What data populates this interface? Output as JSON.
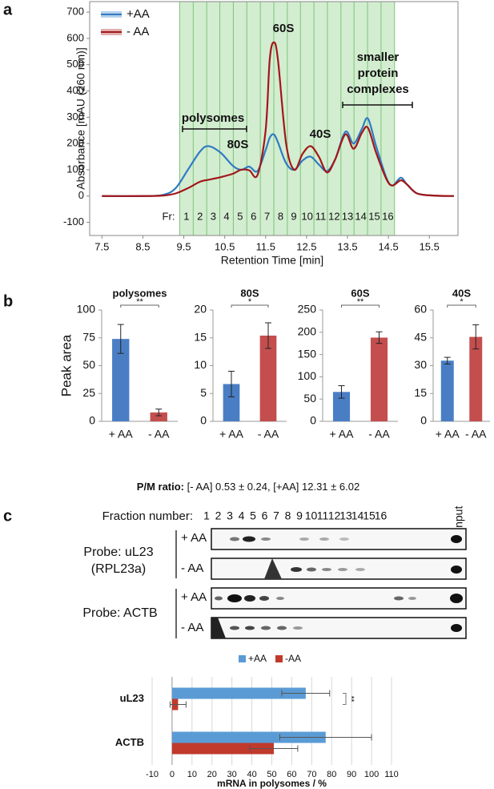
{
  "panel_labels": [
    "a",
    "b",
    "c"
  ],
  "chart_data": [
    {
      "type": "line",
      "xlabel": "Retention Time [min]",
      "ylabel": "Absorbance [mAU (260 nm)]",
      "xlim": [
        7.2,
        16.2
      ],
      "ylim": [
        -150,
        740
      ],
      "xticks": [
        7.5,
        8.5,
        9.5,
        10.5,
        11.5,
        12.5,
        13.5,
        14.5,
        15.5
      ],
      "yticks": [
        -100,
        0,
        100,
        200,
        300,
        400,
        500,
        600,
        700
      ],
      "legend": "upper left",
      "x": [
        7.5,
        8.5,
        9.0,
        9.3,
        9.6,
        9.9,
        10.1,
        10.4,
        10.7,
        10.9,
        11.1,
        11.3,
        11.5,
        11.6,
        11.7,
        11.8,
        12.0,
        12.2,
        12.4,
        12.6,
        12.8,
        13.0,
        13.2,
        13.45,
        13.65,
        13.85,
        14.0,
        14.2,
        14.45,
        14.6,
        14.8,
        14.95,
        15.2,
        15.6,
        16.1
      ],
      "series": [
        {
          "name": "+AA",
          "color": "#2e7bc4",
          "values": [
            0,
            0,
            5,
            30,
            100,
            170,
            190,
            165,
            115,
            100,
            112,
            95,
            175,
            222,
            235,
            205,
            125,
            100,
            135,
            150,
            120,
            95,
            140,
            245,
            200,
            255,
            295,
            190,
            70,
            40,
            70,
            45,
            10,
            2,
            0
          ]
        },
        {
          "name": "- AA",
          "color": "#a3161a",
          "values": [
            0,
            0,
            2,
            10,
            30,
            55,
            62,
            72,
            85,
            100,
            98,
            80,
            250,
            520,
            585,
            520,
            200,
            100,
            160,
            190,
            150,
            90,
            140,
            235,
            180,
            240,
            260,
            165,
            65,
            40,
            60,
            45,
            10,
            2,
            0
          ]
        }
      ],
      "annotations": [
        "polysomes",
        "80S",
        "60S",
        "40S",
        "smaller",
        "protein",
        "complexes"
      ],
      "fraction_label": "Fr:",
      "fractions": [
        "1",
        "2",
        "3",
        "4",
        "5",
        "6",
        "7",
        "8",
        "9",
        "10",
        "11",
        "12",
        "13",
        "14",
        "15",
        "16"
      ],
      "fraction_edges": [
        9.4,
        9.73,
        10.06,
        10.38,
        10.71,
        11.04,
        11.37,
        11.7,
        12.03,
        12.35,
        12.68,
        13.01,
        13.34,
        13.66,
        13.99,
        14.32,
        14.65
      ],
      "fraction_color": "#d3edd0"
    },
    {
      "type": "bar",
      "title": "polysomes",
      "ylabel": "Peak area",
      "categories": [
        "+ AA",
        "- AA"
      ],
      "values": [
        74,
        8
      ],
      "errors": [
        13,
        3
      ],
      "colors": [
        "#4a7ec4",
        "#c44e4e"
      ],
      "ylim": [
        0,
        100
      ],
      "yticks": [
        0,
        25,
        50,
        75,
        100
      ],
      "significance": "**"
    },
    {
      "type": "bar",
      "title": "80S",
      "categories": [
        "+ AA",
        "- AA"
      ],
      "values": [
        6.7,
        15.4
      ],
      "errors": [
        2.3,
        2.3
      ],
      "colors": [
        "#4a7ec4",
        "#c44e4e"
      ],
      "ylim": [
        0,
        20
      ],
      "yticks": [
        0,
        5,
        10,
        15,
        20
      ],
      "significance": "*"
    },
    {
      "type": "bar",
      "title": "60S",
      "categories": [
        "+ AA",
        "- AA"
      ],
      "values": [
        66,
        188
      ],
      "errors": [
        14,
        13
      ],
      "colors": [
        "#4a7ec4",
        "#c44e4e"
      ],
      "ylim": [
        0,
        250
      ],
      "yticks": [
        0,
        50,
        100,
        150,
        200,
        250
      ],
      "significance": "**"
    },
    {
      "type": "bar",
      "title": "40S",
      "categories": [
        "+ AA",
        "- AA"
      ],
      "values": [
        32.7,
        45.5
      ],
      "errors": [
        1.8,
        6.5
      ],
      "colors": [
        "#4a7ec4",
        "#c44e4e"
      ],
      "ylim": [
        0,
        60
      ],
      "yticks": [
        0,
        15,
        30,
        45,
        60
      ],
      "significance": "*"
    },
    {
      "type": "hbar",
      "xlabel": "mRNA in polysomes / %",
      "categories": [
        "uL23",
        "ACTB"
      ],
      "series": [
        {
          "name": "+AA",
          "color": "#5b9bd5",
          "values": [
            67,
            77
          ],
          "errors": [
            12,
            23
          ]
        },
        {
          "name": "-AA",
          "color": "#c0392b",
          "values": [
            3,
            51
          ],
          "errors": [
            4,
            12
          ]
        }
      ],
      "xlim": [
        -10,
        110
      ],
      "xticks": [
        -10,
        0,
        10,
        20,
        30,
        40,
        50,
        60,
        70,
        80,
        90,
        100,
        110
      ],
      "grid": true,
      "legend": "top",
      "significance": "**"
    }
  ],
  "ratio": {
    "label": "P/M ratio:",
    "text": "[- AA] 0.53 ± 0.24, [+AA] 12.31 ± 6.02"
  },
  "blot": {
    "title": "Fraction number:",
    "fractions": [
      "1",
      "2",
      "3",
      "4",
      "5",
      "6",
      "7",
      "8",
      "9",
      "10",
      "11",
      "12",
      "13",
      "14",
      "15",
      "16"
    ],
    "input": "input",
    "probes": [
      {
        "label": [
          "Probe: uL23",
          "(RPL23a)"
        ]
      },
      {
        "label": [
          "Probe: ACTB"
        ]
      }
    ],
    "conditions": [
      "+ AA",
      "- AA"
    ]
  }
}
